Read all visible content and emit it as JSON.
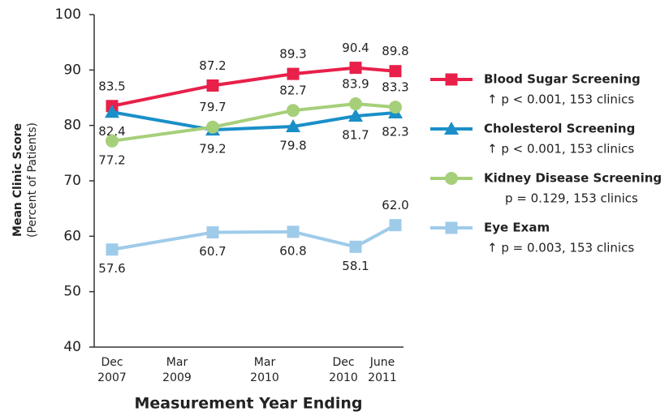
{
  "chart_data": {
    "type": "line",
    "y_label": "Mean Clinic Score",
    "y_sublabel": "(Percent of Patients)",
    "x_label": "Measurement Year Ending",
    "categories": [
      "Dec 2007",
      "Mar 2009",
      "Mar 2010",
      "Dec 2010",
      "June 2011"
    ],
    "ylim": [
      40,
      100
    ],
    "yticks": [
      40,
      50,
      60,
      70,
      80,
      90,
      100
    ],
    "series": [
      {
        "name": "Blood Sugar Screening",
        "note": "↑  p < 0.001, 153 clinics",
        "color": "#e8204a",
        "marker": "square",
        "values": [
          83.5,
          87.2,
          89.3,
          90.4,
          89.8
        ]
      },
      {
        "name": "Cholesterol Screening",
        "note": "↑  p < 0.001, 153 clinics",
        "color": "#1a8fc8",
        "marker": "triangle",
        "values": [
          82.4,
          79.2,
          79.8,
          81.7,
          82.3
        ]
      },
      {
        "name": "Kidney Disease Screening",
        "note": "p = 0.129, 153 clinics",
        "color": "#a6cf7a",
        "marker": "circle",
        "values": [
          77.2,
          79.7,
          82.7,
          83.9,
          83.3
        ]
      },
      {
        "name": "Eye Exam",
        "note": "↑  p = 0.003, 153 clinics",
        "color": "#9fcbea",
        "marker": "square",
        "values": [
          57.6,
          60.7,
          60.8,
          58.1,
          62.0
        ],
        "value_labels": [
          "57.6",
          "60.7",
          "60.8",
          "58.1",
          "62.0"
        ]
      }
    ]
  }
}
